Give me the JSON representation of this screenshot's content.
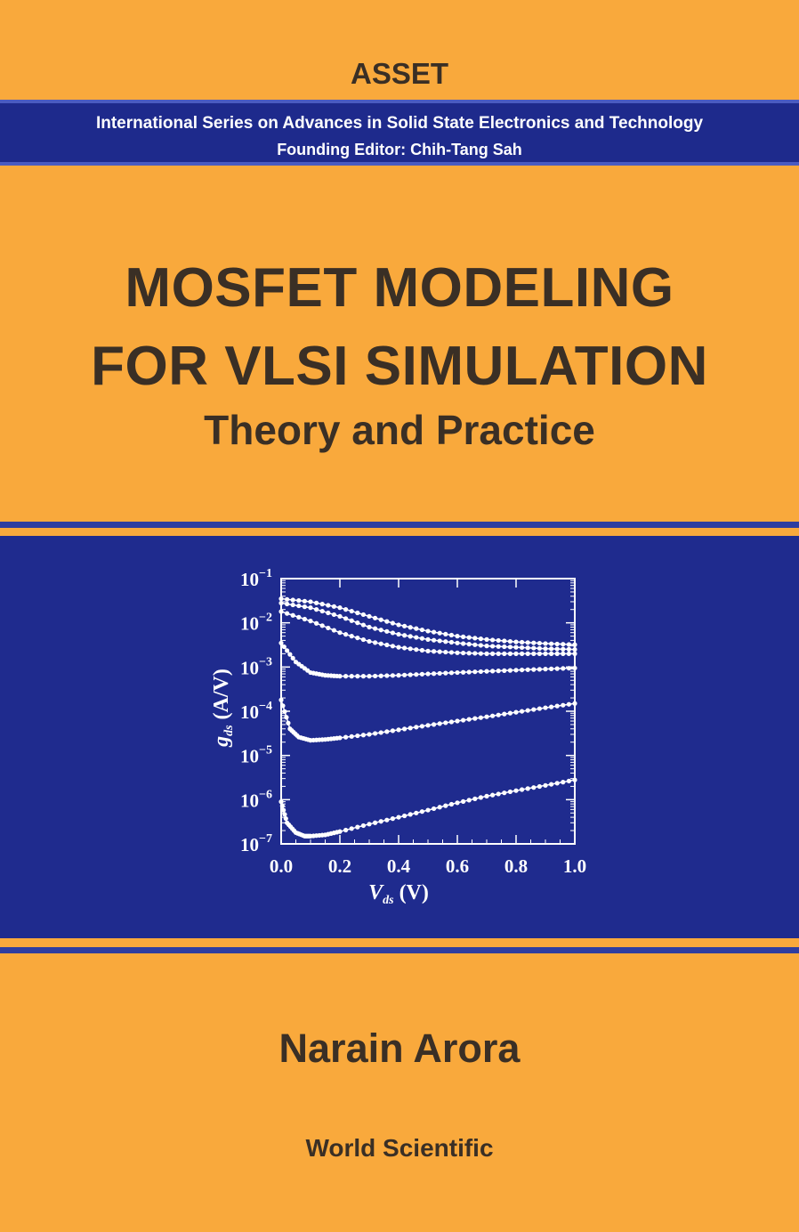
{
  "series": {
    "name": "ASSET",
    "full_name": "International Series on Advances in Solid State Electronics and Technology",
    "editor": "Founding Editor: Chih-Tang Sah"
  },
  "book": {
    "title_line1": "MOSFET MODELING",
    "title_line2": "FOR VLSI SIMULATION",
    "subtitle": "Theory and Practice",
    "author": "Narain Arora",
    "publisher": "World Scientific"
  },
  "colors": {
    "background": "#f9a93c",
    "band": "#1e2a8c",
    "text": "#3a2f25",
    "plot": "#ffffff"
  },
  "chart_data": {
    "type": "scatter",
    "xlabel_main": "V",
    "xlabel_sub": "ds",
    "xlabel_unit": "(V)",
    "ylabel_main": "g",
    "ylabel_sub": "ds",
    "ylabel_unit": "(A/V)",
    "xlim": [
      0,
      1.0
    ],
    "ylim_log10": [
      -7,
      -1
    ],
    "y_scale": "log",
    "xticks": [
      "0.0",
      "0.2",
      "0.4",
      "0.6",
      "0.8",
      "1.0"
    ],
    "yticks": [
      {
        "base": "10",
        "exp": "−1"
      },
      {
        "base": "10",
        "exp": "−2"
      },
      {
        "base": "10",
        "exp": "−3"
      },
      {
        "base": "10",
        "exp": "−4"
      },
      {
        "base": "10",
        "exp": "−5"
      },
      {
        "base": "10",
        "exp": "−6"
      },
      {
        "base": "10",
        "exp": "−7"
      }
    ],
    "series": [
      {
        "x": [
          0.0,
          0.1,
          0.2,
          0.3,
          0.4,
          0.5,
          0.6,
          0.7,
          0.8,
          0.9,
          1.0
        ],
        "y": [
          0.035,
          0.03,
          0.022,
          0.014,
          0.009,
          0.0065,
          0.005,
          0.0042,
          0.0037,
          0.0034,
          0.0032
        ]
      },
      {
        "x": [
          0.0,
          0.1,
          0.2,
          0.3,
          0.4,
          0.5,
          0.6,
          0.7,
          0.8,
          0.9,
          1.0
        ],
        "y": [
          0.028,
          0.022,
          0.014,
          0.008,
          0.0055,
          0.0042,
          0.0035,
          0.003,
          0.0028,
          0.0026,
          0.0025
        ]
      },
      {
        "x": [
          0.0,
          0.1,
          0.2,
          0.3,
          0.4,
          0.5,
          0.6,
          0.7,
          0.8,
          0.9,
          1.0
        ],
        "y": [
          0.018,
          0.011,
          0.006,
          0.0038,
          0.0028,
          0.0023,
          0.0021,
          0.002,
          0.002,
          0.002,
          0.002
        ]
      },
      {
        "x": [
          0.0,
          0.05,
          0.1,
          0.15,
          0.2,
          0.3,
          0.4,
          0.5,
          0.6,
          0.7,
          0.8,
          0.9,
          1.0
        ],
        "y": [
          0.0035,
          0.0013,
          0.00075,
          0.00065,
          0.00062,
          0.00062,
          0.00065,
          0.0007,
          0.00075,
          0.0008,
          0.00085,
          0.0009,
          0.00095
        ]
      },
      {
        "x": [
          0.0,
          0.03,
          0.06,
          0.1,
          0.15,
          0.2,
          0.3,
          0.4,
          0.5,
          0.6,
          0.7,
          0.8,
          0.9,
          1.0
        ],
        "y": [
          0.00018,
          4e-05,
          2.6e-05,
          2.2e-05,
          2.3e-05,
          2.5e-05,
          3e-05,
          3.8e-05,
          4.8e-05,
          6e-05,
          7.5e-05,
          9.5e-05,
          0.00012,
          0.00015
        ]
      },
      {
        "x": [
          0.0,
          0.02,
          0.05,
          0.08,
          0.1,
          0.15,
          0.2,
          0.3,
          0.4,
          0.5,
          0.6,
          0.7,
          0.8,
          0.9,
          1.0
        ],
        "y": [
          9e-07,
          3e-07,
          1.8e-07,
          1.5e-07,
          1.5e-07,
          1.6e-07,
          1.9e-07,
          2.8e-07,
          4e-07,
          5.8e-07,
          8.5e-07,
          1.2e-06,
          1.6e-06,
          2.1e-06,
          2.8e-06
        ]
      }
    ]
  }
}
